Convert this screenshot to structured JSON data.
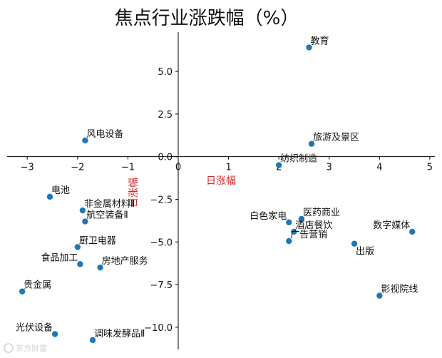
{
  "chart_data": {
    "type": "scatter",
    "title": "焦点行业涨跌幅（%）",
    "xlabel": "日涨幅",
    "ylabel": "日涨幅",
    "xlim": [
      -3.4,
      5.1
    ],
    "ylim": [
      -11.3,
      7.3
    ],
    "xticks": [
      -3,
      -2,
      -1,
      0,
      1,
      2,
      3,
      4,
      5
    ],
    "yticks": [
      -10.0,
      -7.5,
      -5.0,
      -2.5,
      0.0,
      2.5,
      5.0
    ],
    "xtick_labels": [
      "−3",
      "−2",
      "−1",
      "0",
      "1",
      "2",
      "3",
      "4",
      "5"
    ],
    "ytick_labels": [
      "−10.0",
      "−7.5",
      "−5.0",
      "−2.5",
      "0.0",
      "2.5",
      "5.0"
    ],
    "grid": false,
    "point_color": "#1f77b4",
    "axis_label_color": "#d62728",
    "points": [
      {
        "label": "教育",
        "x": 2.6,
        "y": 6.4
      },
      {
        "label": "风电设备",
        "x": -1.85,
        "y": 0.95
      },
      {
        "label": "旅游及景区",
        "x": 2.65,
        "y": 0.75
      },
      {
        "label": "纺织制造",
        "x": 2.0,
        "y": -0.5
      },
      {
        "label": "电池",
        "x": -2.55,
        "y": -2.35
      },
      {
        "label": "非金属材料Ⅱ",
        "x": -1.9,
        "y": -3.15
      },
      {
        "label": "航空装备Ⅱ",
        "x": -1.85,
        "y": -3.8
      },
      {
        "label": "厨卫电器",
        "x": -2.0,
        "y": -5.3
      },
      {
        "label": "食品加工",
        "x": -1.95,
        "y": -6.3
      },
      {
        "label": "房地产服务",
        "x": -1.55,
        "y": -6.5
      },
      {
        "label": "贵金属",
        "x": -3.1,
        "y": -7.9
      },
      {
        "label": "光伏设备",
        "x": -2.45,
        "y": -10.4
      },
      {
        "label": "调味发酵品Ⅱ",
        "x": -1.7,
        "y": -10.75
      },
      {
        "label": "医药商业",
        "x": 2.45,
        "y": -3.65
      },
      {
        "label": "白色家电",
        "x": 2.2,
        "y": -3.85
      },
      {
        "label": "酒店餐饮",
        "x": 2.3,
        "y": -4.4
      },
      {
        "label": "广告营销",
        "x": 2.2,
        "y": -4.95
      },
      {
        "label": "数字媒体",
        "x": 4.65,
        "y": -4.4
      },
      {
        "label": "出版",
        "x": 3.5,
        "y": -5.1
      },
      {
        "label": "影视院线",
        "x": 4.0,
        "y": -8.15
      }
    ]
  },
  "watermark": "东方财富"
}
